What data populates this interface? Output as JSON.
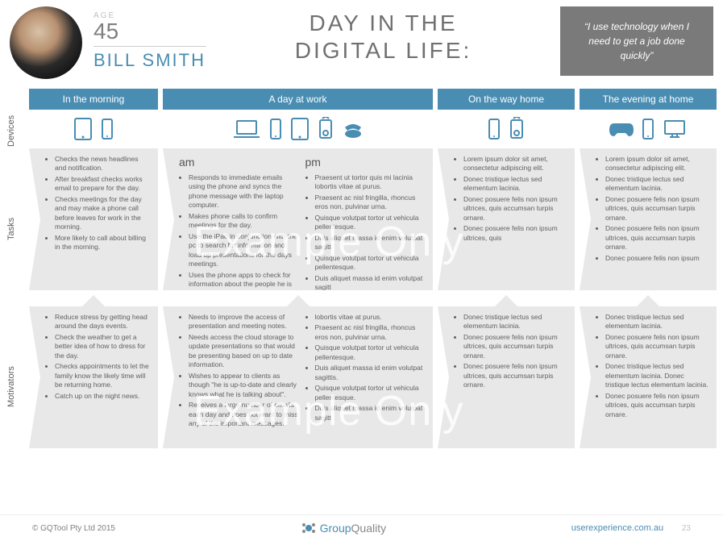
{
  "persona": {
    "age_label": "Age",
    "age": "45",
    "name": "BILL SMITH"
  },
  "title_line1": "DAY IN THE",
  "title_line2": "DIGITAL LIFE:",
  "quote": "“I use technology when I need to get a job done quickly”",
  "side_labels": {
    "devices": "Devices",
    "tasks": "Tasks",
    "motivators": "Motivators"
  },
  "columns": {
    "morning": {
      "header": "In the morning",
      "tasks": [
        "Checks the news headlines and notification.",
        "After breakfast checks works email to prepare for the day.",
        "Checks meetings for the day and may make a phone call before leaves for work in the morning.",
        "More likely to call about billing in the morning."
      ],
      "motivators": [
        "Reduce stress by getting head around the days events.",
        "Check the weather to get a better idea of how to dress for the day.",
        "Checks appointments to let the family know the likely time will be returning home.",
        "Catch up on the night news."
      ]
    },
    "work": {
      "header": "A day at work",
      "am_label": "am",
      "pm_label": "pm",
      "tasks_am": [
        "Responds to immediate emails using the phone and syncs the phone message with the laptop computer.",
        "Makes phone calls to confirm meetings for the day.",
        "Use the iPad in conjunction with the pc to search for information and load up presentations for the days meetings.",
        "Uses the phone apps to check for information about the people he is meeting with."
      ],
      "tasks_pm": [
        "Praesent ut tortor quis mi lacinia lobortis vitae at purus.",
        "Praesent ac nisl fringilla, rhoncus eros non, pulvinar urna.",
        "Quisque volutpat tortor ut vehicula pellentesque.",
        "Duis aliquet massa id enim volutpat sagitt",
        "Quisque volutpat tortor ut vehicula pellentesque.",
        "Duis aliquet massa id enim volutpat sagitt"
      ],
      "motivators_am": [
        "Needs to improve the access of presentation and meeting notes.",
        "Needs access the cloud storage to update presentations so that would be presenting based on up to date information.",
        "Wishes to appear to clients as though \"he is up-to-date and clearly knows what he is talking about\".",
        "Receives a large number of emails each day and does not want to miss any of the important messages."
      ],
      "motivators_pm": [
        "lobortis vitae at purus.",
        "Praesent ac nisl fringilla, rhoncus eros non, pulvinar urna.",
        "Quisque volutpat tortor ut vehicula pellentesque.",
        "Duis aliquet massa id enim volutpat sagittis.",
        "Quisque volutpat tortor ut vehicula pellentesque.",
        "Duis aliquet massa id enim volutpat sagitt"
      ]
    },
    "commute": {
      "header": "On the way home",
      "tasks": [
        "Lorem ipsum dolor sit amet, consectetur adipiscing elit.",
        "Donec tristique lectus sed elementum lacinia.",
        "Donec posuere felis non ipsum ultrices, quis accumsan turpis ornare.",
        "Donec posuere felis non ipsum ultrices, quis"
      ],
      "motivators": [
        "Donec tristique lectus sed elementum lacinia.",
        "Donec posuere felis non ipsum ultrices, quis accumsan turpis ornare.",
        "Donec posuere felis non ipsum ultrices, quis accumsan turpis ornare."
      ]
    },
    "evening": {
      "header": "The evening at home",
      "tasks": [
        "Lorem ipsum dolor sit amet, consectetur adipiscing elit.",
        "Donec tristique lectus sed elementum lacinia.",
        "Donec posuere felis non ipsum ultrices, quis accumsan turpis ornare.",
        "Donec posuere felis non ipsum ultrices, quis accumsan turpis ornare.",
        "Donec posuere felis non ipsum"
      ],
      "motivators": [
        "Donec tristique lectus sed elementum lacinia.",
        "Donec posuere felis non ipsum ultrices, quis accumsan turpis ornare.",
        "Donec tristique lectus sed elementum lacinia. Donec tristique lectus elementum lacinia.",
        "Donec posuere felis non ipsum ultrices, quis accumsan turpis ornare."
      ]
    }
  },
  "watermark": "Example Only",
  "footer": {
    "copyright": "© GQTool Pty Ltd 2015",
    "logo_text1": "Group",
    "logo_text2": "Quality",
    "url": "userexperience.com.au",
    "page": "23"
  },
  "colors": {
    "accent": "#4a8db2",
    "box": "#e8e8e8",
    "quote_bg": "#7a7a7a",
    "text": "#606060"
  }
}
